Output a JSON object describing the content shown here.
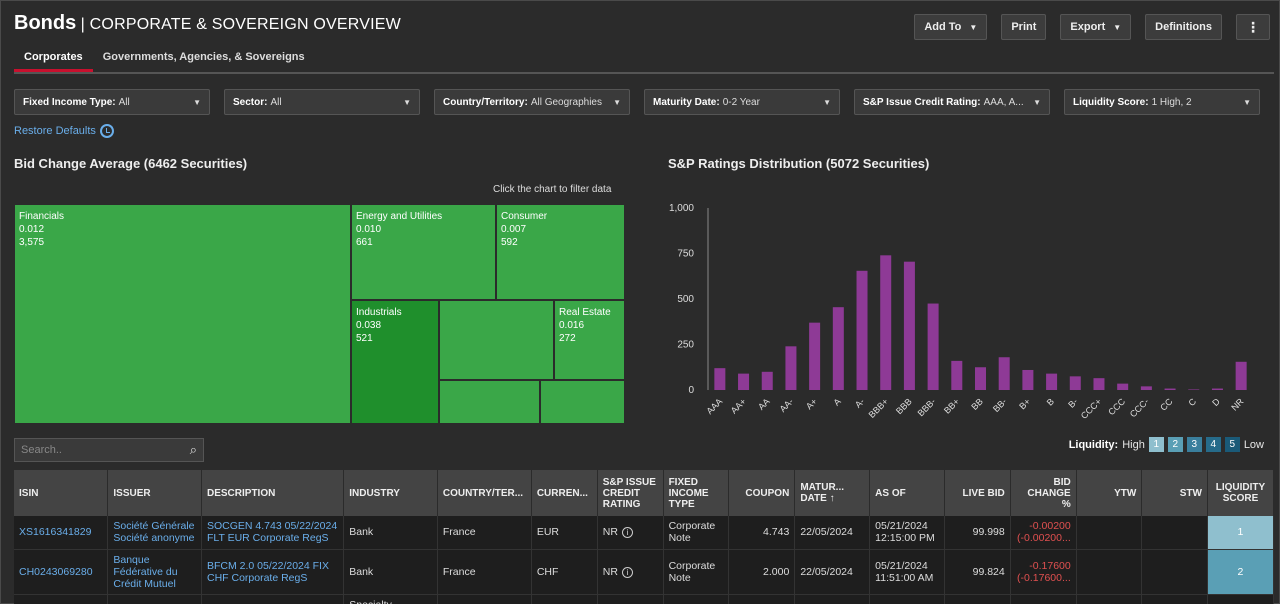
{
  "header": {
    "bold": "Bonds",
    "subtitle": "| CORPORATE & SOVEREIGN OVERVIEW"
  },
  "toolbar": {
    "add_to": "Add To",
    "print": "Print",
    "export": "Export",
    "definitions": "Definitions"
  },
  "tabs": [
    {
      "label": "Corporates"
    },
    {
      "label": "Governments, Agencies, & Sovereigns"
    }
  ],
  "filters": [
    {
      "key": "Fixed Income Type:",
      "value": "All"
    },
    {
      "key": "Sector:",
      "value": "All"
    },
    {
      "key": "Country/Territory:",
      "value": "All Geographies"
    },
    {
      "key": "Maturity Date:",
      "value": "0-2 Year"
    },
    {
      "key": "S&P Issue Credit Rating:",
      "value": "AAA, A..."
    },
    {
      "key": "Liquidity Score:",
      "value": "1 High, 2"
    }
  ],
  "restore": "Restore Defaults",
  "treemap": {
    "title": "Bid Change Average (6462 Securities)",
    "hint": "Click the chart to filter data",
    "cells": [
      {
        "name": "Financials",
        "value": "0.012",
        "count": "3,575"
      },
      {
        "name": "Energy and Utilities",
        "value": "0.010",
        "count": "661"
      },
      {
        "name": "Consumer",
        "value": "0.007",
        "count": "592"
      },
      {
        "name": "Industrials",
        "value": "0.038",
        "count": "521"
      },
      {
        "name": "Real Estate",
        "value": "0.016",
        "count": "272"
      }
    ]
  },
  "ratings_title": "S&P Ratings Distribution (5072 Securities)",
  "chart_data": {
    "type": "bar",
    "categories": [
      "AAA",
      "AA+",
      "AA",
      "AA-",
      "A+",
      "A",
      "A-",
      "BBB+",
      "BBB",
      "BBB-",
      "BB+",
      "BB",
      "BB-",
      "B+",
      "B",
      "B-",
      "CCC+",
      "CCC",
      "CCC-",
      "CC",
      "C",
      "D",
      "NR"
    ],
    "values": [
      120,
      90,
      100,
      240,
      370,
      455,
      655,
      740,
      705,
      475,
      160,
      125,
      180,
      110,
      90,
      75,
      65,
      35,
      20,
      8,
      3,
      8,
      155
    ],
    "ylim": [
      0,
      1000
    ],
    "yticks": [
      "0",
      "250",
      "500",
      "750",
      "1,000"
    ],
    "color": "#8e3a96"
  },
  "search": {
    "placeholder": "Search.."
  },
  "liquidity": {
    "label": "Liquidity:",
    "high": "High",
    "low": "Low",
    "levels": [
      "1",
      "2",
      "3",
      "4",
      "5"
    ]
  },
  "table": {
    "headers": [
      "ISIN",
      "ISSUER",
      "DESCRIPTION",
      "INDUSTRY",
      "COUNTRY/TER...",
      "CURREN...",
      "S&P ISSUE CREDIT RATING",
      "FIXED INCOME TYPE",
      "COUPON",
      "MATUR... DATE",
      "AS OF",
      "LIVE BID",
      "BID CHANGE %",
      "YTW",
      "STW",
      "LIQUIDITY SCORE"
    ],
    "rows": [
      {
        "isin": "XS1616341829",
        "issuer": "Société Générale Société anonyme",
        "desc": "SOCGEN 4.743 05/22/2024 FLT EUR Corporate RegS",
        "industry": "Bank",
        "country": "France",
        "currency": "EUR",
        "rating": "NR",
        "type": "Corporate Note",
        "coupon": "4.743",
        "maturity": "22/05/2024",
        "asof": "05/21/2024 12:15:00 PM",
        "bid": "99.998",
        "change1": "-0.00200",
        "change2": "(-0.00200...",
        "liq": "1"
      },
      {
        "isin": "CH0243069280",
        "issuer": "Banque Fédérative du Crédit Mutuel",
        "desc": "BFCM 2.0 05/22/2024 FIX CHF Corporate RegS",
        "industry": "Bank",
        "country": "France",
        "currency": "CHF",
        "rating": "NR",
        "type": "Corporate Note",
        "coupon": "2.000",
        "maturity": "22/05/2024",
        "asof": "05/21/2024 11:51:00 AM",
        "bid": "99.824",
        "change1": "-0.17600",
        "change2": "(-0.17600...",
        "liq": "2"
      }
    ],
    "partial": "Specialty"
  }
}
